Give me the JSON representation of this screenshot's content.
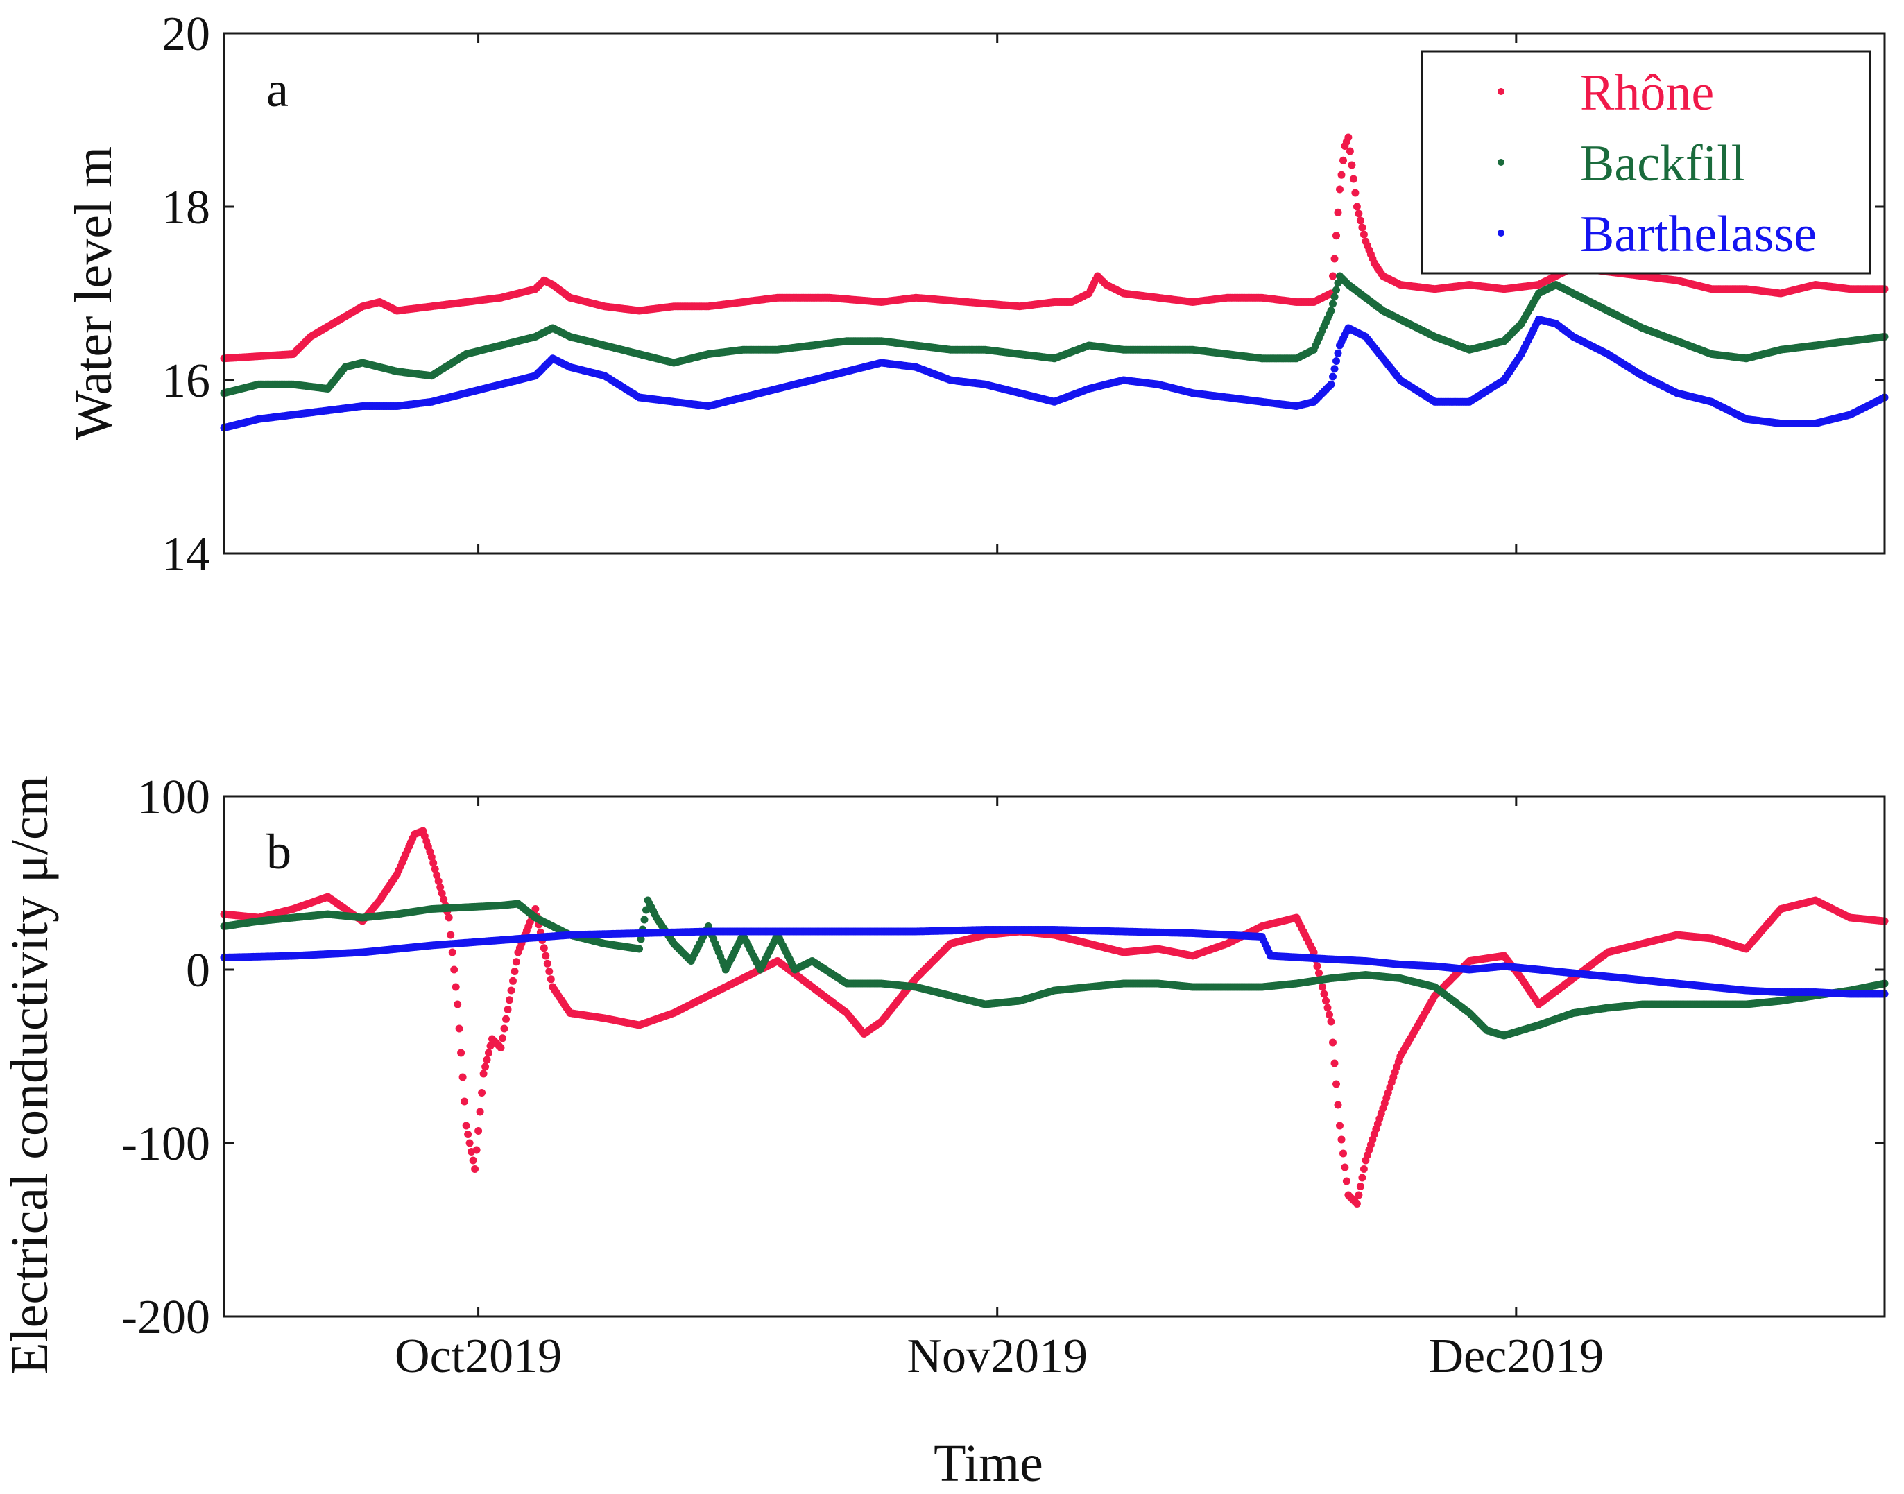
{
  "chart_data": [
    {
      "type": "scatter",
      "panel_label": "a",
      "ylabel": "Water level m",
      "xlabel": "",
      "ylim": [
        14,
        20
      ],
      "yticks": [
        "14",
        "16",
        "18",
        "20"
      ],
      "xlim_days": [
        0,
        96
      ],
      "xtick_days": [
        14.7,
        44.7,
        74.7
      ],
      "xticklabels": [
        "Oct2019",
        "Nov2019",
        "Dec2019"
      ],
      "legend": {
        "position": "top-right",
        "entries": [
          "Rhône",
          "Backfill",
          "Barthelasse"
        ]
      },
      "series": [
        {
          "name": "Rhône",
          "color": "#f0194a",
          "x": [
            0,
            4,
            5,
            8,
            9,
            10,
            12,
            14,
            16,
            18,
            18.5,
            19,
            20,
            22,
            24,
            26,
            28,
            30,
            32,
            35,
            38,
            40,
            43,
            46,
            48,
            49,
            50,
            50.5,
            51,
            52,
            54,
            56,
            58,
            60,
            62,
            63,
            64,
            64.2,
            64.5,
            64.8,
            65,
            65.5,
            66,
            66.5,
            67,
            68,
            70,
            72,
            74,
            76,
            77,
            78,
            80,
            82,
            84,
            86,
            88,
            90,
            92,
            94,
            96
          ],
          "y": [
            16.25,
            16.3,
            16.5,
            16.85,
            16.9,
            16.8,
            16.85,
            16.9,
            16.95,
            17.05,
            17.15,
            17.1,
            16.95,
            16.85,
            16.8,
            16.85,
            16.85,
            16.9,
            16.95,
            16.95,
            16.9,
            16.95,
            16.9,
            16.85,
            16.9,
            16.9,
            17.0,
            17.2,
            17.1,
            17.0,
            16.95,
            16.9,
            16.95,
            16.95,
            16.9,
            16.9,
            17.0,
            17.4,
            18.2,
            18.7,
            18.8,
            18.0,
            17.6,
            17.35,
            17.2,
            17.1,
            17.05,
            17.1,
            17.05,
            17.1,
            17.2,
            17.3,
            17.25,
            17.2,
            17.15,
            17.05,
            17.05,
            17.0,
            17.1,
            17.05,
            17.05
          ]
        },
        {
          "name": "Backfill",
          "color": "#1a6b3c",
          "x": [
            0,
            2,
            4,
            6,
            7,
            8,
            10,
            12,
            14,
            16,
            18,
            19,
            20,
            22,
            24,
            26,
            28,
            30,
            32,
            34,
            36,
            38,
            40,
            42,
            44,
            46,
            48,
            50,
            52,
            54,
            56,
            58,
            60,
            62,
            63,
            64,
            64.5,
            65,
            66,
            67,
            68,
            70,
            72,
            74,
            75,
            76,
            77,
            78,
            80,
            82,
            84,
            86,
            88,
            90,
            92,
            94,
            96
          ],
          "y": [
            15.85,
            15.95,
            15.95,
            15.9,
            16.15,
            16.2,
            16.1,
            16.05,
            16.3,
            16.4,
            16.5,
            16.6,
            16.5,
            16.4,
            16.3,
            16.2,
            16.3,
            16.35,
            16.35,
            16.4,
            16.45,
            16.45,
            16.4,
            16.35,
            16.35,
            16.3,
            16.25,
            16.4,
            16.35,
            16.35,
            16.35,
            16.3,
            16.25,
            16.25,
            16.35,
            16.8,
            17.2,
            17.1,
            16.95,
            16.8,
            16.7,
            16.5,
            16.35,
            16.45,
            16.65,
            17.0,
            17.1,
            17.0,
            16.8,
            16.6,
            16.45,
            16.3,
            16.25,
            16.35,
            16.4,
            16.45,
            16.5
          ]
        },
        {
          "name": "Barthelasse",
          "color": "#1414f0",
          "x": [
            0,
            2,
            4,
            6,
            8,
            10,
            12,
            14,
            16,
            18,
            19,
            20,
            22,
            24,
            26,
            28,
            30,
            32,
            34,
            36,
            38,
            40,
            42,
            44,
            46,
            48,
            50,
            52,
            54,
            56,
            58,
            60,
            62,
            63,
            64,
            64.5,
            65,
            66,
            67,
            68,
            70,
            72,
            74,
            75,
            76,
            77,
            78,
            80,
            82,
            84,
            86,
            88,
            90,
            92,
            94,
            96
          ],
          "y": [
            15.45,
            15.55,
            15.6,
            15.65,
            15.7,
            15.7,
            15.75,
            15.85,
            15.95,
            16.05,
            16.25,
            16.15,
            16.05,
            15.8,
            15.75,
            15.7,
            15.8,
            15.9,
            16.0,
            16.1,
            16.2,
            16.15,
            16.0,
            15.95,
            15.85,
            15.75,
            15.9,
            16.0,
            15.95,
            15.85,
            15.8,
            15.75,
            15.7,
            15.75,
            15.95,
            16.4,
            16.6,
            16.5,
            16.25,
            16.0,
            15.75,
            15.75,
            16.0,
            16.3,
            16.7,
            16.65,
            16.5,
            16.3,
            16.05,
            15.85,
            15.75,
            15.55,
            15.5,
            15.5,
            15.6,
            15.8
          ]
        }
      ]
    },
    {
      "type": "scatter",
      "panel_label": "b",
      "ylabel": "Electrical conductivity μ/cm",
      "xlabel": "Time",
      "ylim": [
        -200,
        100
      ],
      "yticks": [
        "-200",
        "-100",
        "0",
        "100"
      ],
      "xlim_days": [
        0,
        96
      ],
      "xtick_days": [
        14.7,
        44.7,
        74.7
      ],
      "xticklabels": [
        "Oct2019",
        "Nov2019",
        "Dec2019"
      ],
      "series": [
        {
          "name": "Rhône",
          "color": "#f0194a",
          "x": [
            0,
            2,
            4,
            6,
            7,
            8,
            9,
            10,
            11,
            11.5,
            12,
            13,
            13.5,
            14,
            14.5,
            15,
            15.5,
            16,
            17,
            18,
            19,
            20,
            22,
            24,
            26,
            28,
            30,
            32,
            34,
            36,
            37,
            38,
            40,
            42,
            44,
            46,
            48,
            50,
            52,
            54,
            56,
            58,
            60,
            62,
            63,
            64,
            64.5,
            65,
            65.5,
            66,
            67,
            68,
            70,
            72,
            74,
            75,
            76,
            78,
            80,
            82,
            84,
            86,
            88,
            90,
            92,
            94,
            96
          ],
          "y": [
            32,
            30,
            35,
            42,
            35,
            28,
            40,
            55,
            78,
            80,
            65,
            30,
            -20,
            -90,
            -115,
            -60,
            -40,
            -45,
            10,
            35,
            -10,
            -25,
            -28,
            -32,
            -25,
            -15,
            -5,
            5,
            -10,
            -25,
            -37,
            -30,
            -5,
            15,
            20,
            22,
            20,
            15,
            10,
            12,
            8,
            15,
            25,
            30,
            10,
            -30,
            -90,
            -130,
            -135,
            -110,
            -80,
            -50,
            -15,
            5,
            8,
            -5,
            -20,
            -5,
            10,
            15,
            20,
            18,
            12,
            35,
            40,
            30,
            28
          ]
        },
        {
          "name": "Backfill",
          "color": "#1a6b3c",
          "x": [
            0,
            2,
            4,
            6,
            8,
            10,
            12,
            14,
            16,
            17,
            18,
            20,
            22,
            24,
            24.5,
            25,
            26,
            27,
            28,
            29,
            30,
            31,
            32,
            33,
            34,
            36,
            38,
            40,
            42,
            44,
            46,
            48,
            50,
            52,
            54,
            56,
            58,
            60,
            62,
            64,
            66,
            68,
            70,
            72,
            73,
            74,
            76,
            78,
            80,
            82,
            84,
            86,
            88,
            90,
            92,
            94,
            96
          ],
          "y": [
            25,
            28,
            30,
            32,
            30,
            32,
            35,
            36,
            37,
            38,
            30,
            20,
            15,
            12,
            40,
            30,
            15,
            5,
            25,
            0,
            20,
            0,
            20,
            0,
            5,
            -8,
            -8,
            -10,
            -15,
            -20,
            -18,
            -12,
            -10,
            -8,
            -8,
            -10,
            -10,
            -10,
            -8,
            -5,
            -3,
            -5,
            -10,
            -25,
            -35,
            -38,
            -32,
            -25,
            -22,
            -20,
            -20,
            -20,
            -20,
            -18,
            -15,
            -12,
            -8
          ]
        },
        {
          "name": "Barthelasse",
          "color": "#1414f0",
          "x": [
            0,
            4,
            8,
            12,
            16,
            20,
            24,
            28,
            32,
            36,
            40,
            44,
            48,
            52,
            56,
            60,
            60.5,
            64,
            66,
            68,
            70,
            72,
            74,
            76,
            78,
            80,
            82,
            84,
            86,
            88,
            90,
            92,
            94,
            96
          ],
          "y": [
            7,
            8,
            10,
            14,
            17,
            20,
            21,
            22,
            22,
            22,
            22,
            23,
            23,
            22,
            21,
            19,
            8,
            6,
            5,
            3,
            2,
            0,
            2,
            0,
            -2,
            -4,
            -6,
            -8,
            -10,
            -12,
            -13,
            -13,
            -14,
            -14
          ]
        }
      ]
    }
  ]
}
